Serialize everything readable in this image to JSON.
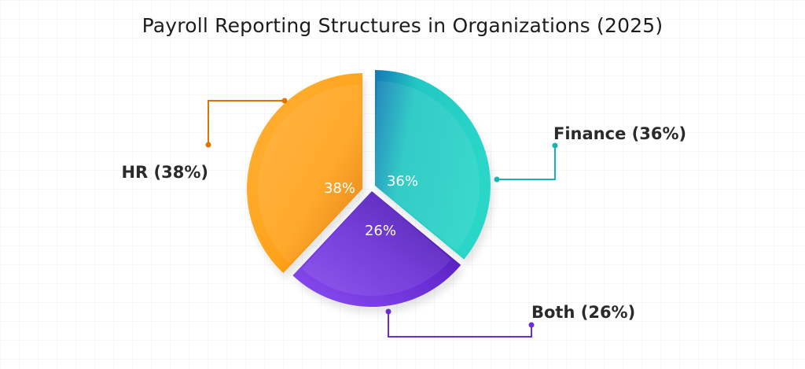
{
  "chart_data": {
    "type": "pie",
    "title": "Payroll Reporting Structures in Organizations (2025)",
    "slices": [
      {
        "name": "Finance",
        "value": 36,
        "slice_label": "36%",
        "callout": "Finance (36%)",
        "color": "#22c7c3",
        "color_dark": "#1577b8"
      },
      {
        "name": "Both",
        "value": 26,
        "slice_label": "26%",
        "callout": "Both (26%)",
        "color": "#7a3fe0",
        "color_dark": "#3d0f9e"
      },
      {
        "name": "HR",
        "value": 38,
        "slice_label": "38%",
        "callout": "HR (38%)",
        "color": "#ffa21a",
        "color_dark": "#e07200"
      }
    ]
  }
}
